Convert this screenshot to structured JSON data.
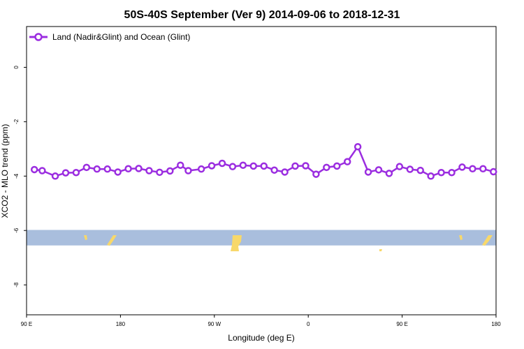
{
  "chart_data": {
    "type": "line",
    "title": "50S-40S September (Ver 9)   2014-09-06 to 2018-12-31",
    "xlabel": "Longitude (deg E)",
    "ylabel": "XCO2 - MLO trend (ppm)",
    "x_ticks": [
      {
        "value": 90,
        "label": "90 E"
      },
      {
        "value": 180,
        "label": "180"
      },
      {
        "value": 270,
        "label": "90 W"
      },
      {
        "value": 360,
        "label": "0"
      },
      {
        "value": 450,
        "label": "90 E"
      },
      {
        "value": 540,
        "label": "180"
      }
    ],
    "y_ticks": [
      {
        "value": 0,
        "label": "0"
      },
      {
        "value": -2,
        "label": "-2"
      },
      {
        "value": -4,
        "label": "-4"
      },
      {
        "value": -6,
        "label": "-6"
      },
      {
        "value": -8,
        "label": "-8"
      }
    ],
    "xlim": [
      90,
      540
    ],
    "ylim": [
      -9.1,
      1.5
    ],
    "grid": false,
    "legend_position": "top-left",
    "series": [
      {
        "name": "Land (Nadir&Glint) and Ocean (Glint)",
        "color": "#9b2de0",
        "x": [
          97.5,
          105,
          117.5,
          127.5,
          137.5,
          147.5,
          157.5,
          167.5,
          177.5,
          187.5,
          197.5,
          207.5,
          217.5,
          227.5,
          237.5,
          245,
          257.5,
          267.5,
          277.5,
          287.5,
          297.5,
          307.5,
          317.5,
          327.5,
          337.5,
          347.5,
          357.5,
          367.5,
          377.5,
          387.5,
          397.5,
          407.5,
          417.5,
          427.5,
          437.5,
          447.5,
          457.5,
          467.5,
          477.5,
          487.5,
          497.5,
          507.5,
          517.5,
          527.5,
          537.5
        ],
        "values": [
          -3.76,
          -3.8,
          -4.0,
          -3.88,
          -3.87,
          -3.68,
          -3.74,
          -3.74,
          -3.85,
          -3.73,
          -3.72,
          -3.8,
          -3.86,
          -3.81,
          -3.6,
          -3.8,
          -3.74,
          -3.62,
          -3.53,
          -3.65,
          -3.6,
          -3.63,
          -3.63,
          -3.78,
          -3.85,
          -3.63,
          -3.62,
          -3.93,
          -3.68,
          -3.63,
          -3.47,
          -2.92,
          -3.85,
          -3.77,
          -3.9,
          -3.65,
          -3.75,
          -3.79,
          -4.0,
          -3.87,
          -3.87,
          -3.67,
          -3.73,
          -3.73,
          -3.84
        ]
      }
    ],
    "map_strip": {
      "y_top": -5.98,
      "y_bottom": -6.55,
      "ocean_color": "#a9bedd",
      "land_color": "#f8d86a"
    }
  }
}
